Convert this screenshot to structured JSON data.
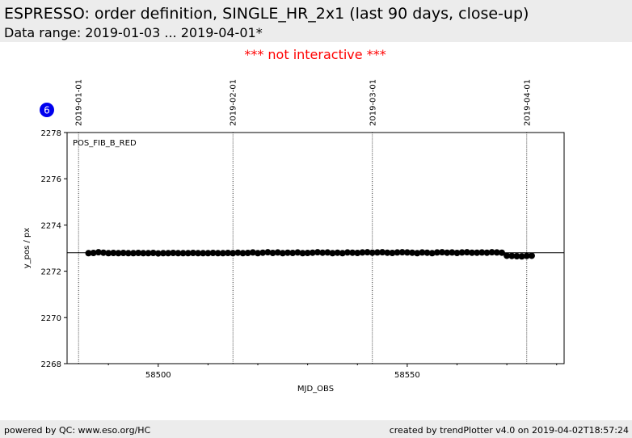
{
  "header": {
    "title": "ESPRESSO: order definition, SINGLE_HR_2x1 (last 90 days, close-up)",
    "subtitle": "Data range: 2019-01-03 ... 2019-04-01*"
  },
  "notice": "*** not interactive ***",
  "badge": 6,
  "footer": {
    "left": "powered by QC: www.eso.org/HC",
    "right": "created by trendPlotter v4.0 on 2019-04-02T18:57:24"
  },
  "chart_data": {
    "type": "scatter",
    "label": "POS_FIB_B_RED",
    "xlabel": "MJD_OBS",
    "ylabel": "y_pos / px",
    "color": "#000000",
    "xlim": [
      58481.7,
      58581.5
    ],
    "ylim": [
      2268,
      2278
    ],
    "xticks": [
      58500,
      58550
    ],
    "xminor_ticks": [
      58490,
      58510,
      58520,
      58530,
      58540,
      58560,
      58570,
      58580
    ],
    "yticks": [
      2268,
      2270,
      2272,
      2274,
      2276,
      2278
    ],
    "reference_line": 2272.8,
    "date_lines": [
      {
        "value": 58484,
        "label": "2019-01-01"
      },
      {
        "value": 58515,
        "label": "2019-02-01"
      },
      {
        "value": 58543,
        "label": "2019-03-01"
      },
      {
        "value": 58574,
        "label": "2019-04-01"
      }
    ],
    "x": [
      58486,
      58487,
      58488,
      58489,
      58490,
      58491,
      58492,
      58493,
      58494,
      58495,
      58496,
      58497,
      58498,
      58499,
      58500,
      58501,
      58502,
      58503,
      58504,
      58505,
      58506,
      58507,
      58508,
      58509,
      58510,
      58511,
      58512,
      58513,
      58514,
      58515,
      58516,
      58517,
      58518,
      58519,
      58520,
      58521,
      58522,
      58523,
      58524,
      58525,
      58526,
      58527,
      58528,
      58529,
      58530,
      58531,
      58532,
      58533,
      58534,
      58535,
      58536,
      58537,
      58538,
      58539,
      58540,
      58541,
      58542,
      58543,
      58544,
      58545,
      58546,
      58547,
      58548,
      58549,
      58550,
      58551,
      58552,
      58553,
      58554,
      58555,
      58556,
      58557,
      58558,
      58559,
      58560,
      58561,
      58562,
      58563,
      58564,
      58565,
      58566,
      58567,
      58568,
      58569,
      58570,
      58571,
      58572,
      58573,
      58574,
      58575
    ],
    "values": [
      2272.78,
      2272.79,
      2272.82,
      2272.8,
      2272.78,
      2272.79,
      2272.78,
      2272.79,
      2272.78,
      2272.78,
      2272.79,
      2272.78,
      2272.78,
      2272.79,
      2272.77,
      2272.78,
      2272.78,
      2272.79,
      2272.78,
      2272.78,
      2272.78,
      2272.79,
      2272.78,
      2272.78,
      2272.78,
      2272.79,
      2272.78,
      2272.78,
      2272.79,
      2272.78,
      2272.8,
      2272.78,
      2272.79,
      2272.81,
      2272.78,
      2272.8,
      2272.82,
      2272.79,
      2272.81,
      2272.78,
      2272.8,
      2272.79,
      2272.81,
      2272.78,
      2272.79,
      2272.8,
      2272.82,
      2272.8,
      2272.81,
      2272.78,
      2272.8,
      2272.78,
      2272.81,
      2272.8,
      2272.79,
      2272.81,
      2272.82,
      2272.8,
      2272.81,
      2272.82,
      2272.8,
      2272.79,
      2272.81,
      2272.82,
      2272.81,
      2272.8,
      2272.78,
      2272.81,
      2272.8,
      2272.78,
      2272.81,
      2272.82,
      2272.8,
      2272.81,
      2272.79,
      2272.81,
      2272.82,
      2272.8,
      2272.8,
      2272.81,
      2272.8,
      2272.82,
      2272.81,
      2272.8,
      2272.67,
      2272.66,
      2272.65,
      2272.64,
      2272.66,
      2272.67
    ]
  }
}
